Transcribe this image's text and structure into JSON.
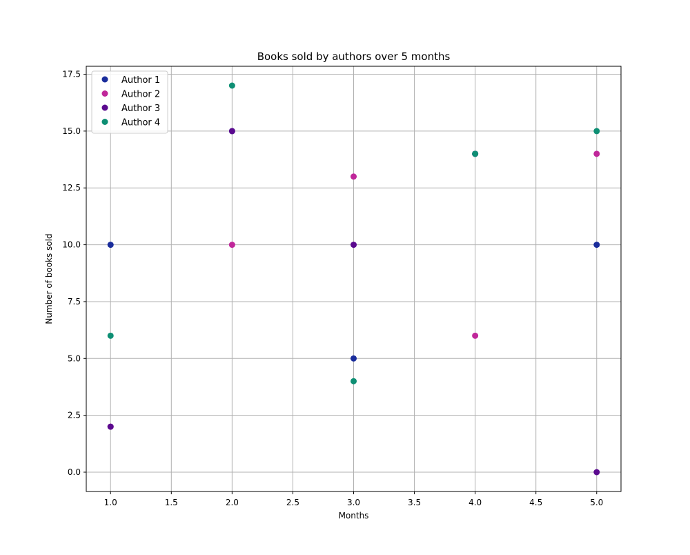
{
  "chart_data": {
    "type": "scatter",
    "title": "Books sold by authors over 5 months",
    "xlabel": "Months",
    "ylabel": "Number of books sold",
    "xlim": [
      0.8,
      5.2
    ],
    "ylim": [
      -0.85,
      17.85
    ],
    "xticks": [
      1.0,
      1.5,
      2.0,
      2.5,
      3.0,
      3.5,
      4.0,
      4.5,
      5.0
    ],
    "xtick_labels": [
      "1.0",
      "1.5",
      "2.0",
      "2.5",
      "3.0",
      "3.5",
      "4.0",
      "4.5",
      "5.0"
    ],
    "yticks": [
      0,
      2.5,
      5,
      7.5,
      10,
      12.5,
      15,
      17.5
    ],
    "ytick_labels": [
      "0.0",
      "2.5",
      "5.0",
      "7.5",
      "10.0",
      "12.5",
      "15.0",
      "17.5"
    ],
    "grid": true,
    "legend_position": "top-left",
    "series": [
      {
        "name": "Author 1",
        "color": "#1a2d9c",
        "x": [
          1,
          2,
          3,
          4,
          5
        ],
        "y": [
          10,
          15,
          5,
          14,
          10
        ]
      },
      {
        "name": "Author 2",
        "color": "#c0279a",
        "x": [
          1,
          2,
          3,
          4,
          5
        ],
        "y": [
          2,
          10,
          13,
          6,
          14
        ]
      },
      {
        "name": "Author 3",
        "color": "#5b0a8f",
        "x": [
          1,
          2,
          3,
          4,
          5
        ],
        "y": [
          2,
          15,
          10,
          14,
          0
        ]
      },
      {
        "name": "Author 4",
        "color": "#0e8f74",
        "x": [
          1,
          2,
          3,
          4,
          5
        ],
        "y": [
          6,
          17,
          4,
          14,
          15
        ]
      }
    ]
  }
}
